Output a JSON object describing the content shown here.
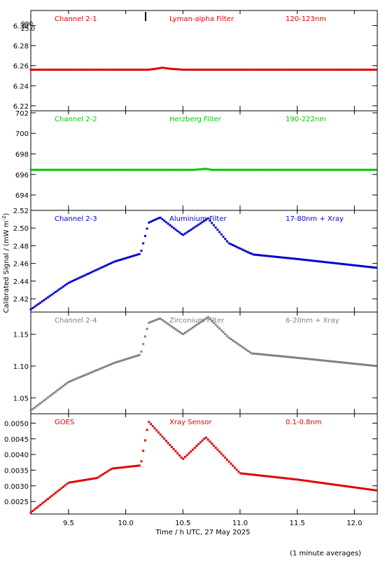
{
  "figure": {
    "ylabel": "Calibrated Signal / (mW m",
    "ylabel_sup": "-2",
    "ylabel_close": ")",
    "xlabel": "Time / h UTC, 27 May 2025",
    "footnote": "(1 minute averages)",
    "stray_text_1": "990",
    "stray_text_2": "25.0"
  },
  "chart_data": [
    {
      "type": "scatter",
      "channel": "Channel 2-1",
      "filter": "Lyman-alpha Filter",
      "band": "120-123nm",
      "color": "#e00000",
      "xlim": [
        9.17,
        12.2
      ],
      "ylim": [
        6.215,
        6.315
      ],
      "yticks": [
        6.22,
        6.24,
        6.26,
        6.28,
        6.3
      ],
      "ytick_labels": [
        "6.22",
        "6.24",
        "6.26",
        "6.28",
        "6.30"
      ],
      "series": [
        {
          "x": [
            9.17,
            10.2,
            10.27,
            10.32,
            10.38,
            10.5,
            12.2
          ],
          "y": [
            6.256,
            6.256,
            6.257,
            6.258,
            6.257,
            6.256,
            6.256
          ]
        }
      ]
    },
    {
      "type": "scatter",
      "channel": "Channel 2-2",
      "filter": "Herzberg Filter",
      "band": "190-222nm",
      "color": "#00c800",
      "xlim": [
        9.17,
        12.2
      ],
      "ylim": [
        692.5,
        702.2
      ],
      "yticks": [
        694,
        696,
        698,
        700,
        702
      ],
      "ytick_labels": [
        "694",
        "696",
        "698",
        "700",
        "702"
      ],
      "series": [
        {
          "x": [
            9.17,
            10.6,
            10.7,
            10.75,
            12.2
          ],
          "y": [
            696.45,
            696.45,
            696.55,
            696.45,
            696.45
          ]
        }
      ]
    },
    {
      "type": "scatter",
      "channel": "Channel 2-3",
      "filter": "Aluminium Filter",
      "band": "17-80nm + Xray",
      "color": "#0000d0",
      "xlim": [
        9.17,
        12.2
      ],
      "ylim": [
        2.405,
        2.52
      ],
      "yticks": [
        2.42,
        2.44,
        2.46,
        2.48,
        2.5,
        2.52
      ],
      "ytick_labels": [
        "2.42",
        "2.44",
        "2.46",
        "2.48",
        "2.50",
        "2.52"
      ],
      "series": [
        {
          "x": [
            9.17,
            9.5,
            9.9,
            10.13,
            10.2,
            10.3,
            10.5,
            10.72,
            10.9,
            11.08,
            11.12,
            11.5,
            12.2
          ],
          "y": [
            2.408,
            2.438,
            2.462,
            2.471,
            2.506,
            2.512,
            2.492,
            2.511,
            2.483,
            2.472,
            2.47,
            2.465,
            2.455
          ]
        }
      ]
    },
    {
      "type": "scatter",
      "channel": "Channel 2-4",
      "filter": "Zirconium Filter",
      "band": "6-20nm + Xray",
      "color": "#808080",
      "xlim": [
        9.17,
        12.2
      ],
      "ylim": [
        1.025,
        1.185
      ],
      "yticks": [
        1.05,
        1.1,
        1.15
      ],
      "ytick_labels": [
        "1.05",
        "1.10",
        "1.15"
      ],
      "series": [
        {
          "x": [
            9.17,
            9.5,
            9.9,
            10.13,
            10.2,
            10.3,
            10.5,
            10.72,
            10.9,
            11.1,
            11.5,
            12.2
          ],
          "y": [
            1.03,
            1.075,
            1.105,
            1.118,
            1.168,
            1.175,
            1.15,
            1.177,
            1.145,
            1.12,
            1.113,
            1.1
          ]
        }
      ]
    },
    {
      "type": "scatter",
      "channel": "GOES",
      "filter": "Xray Sensor",
      "band": "0.1-0.8nm",
      "color": "#e00000",
      "xlim": [
        9.17,
        12.2
      ],
      "ylim": [
        0.0021,
        0.0053
      ],
      "yticks": [
        0.0025,
        0.003,
        0.0035,
        0.004,
        0.0045,
        0.005
      ],
      "ytick_labels": [
        "0.0025",
        "0.0030",
        "0.0035",
        "0.0040",
        "0.0045",
        "0.0050"
      ],
      "series": [
        {
          "x": [
            9.17,
            9.5,
            9.75,
            9.88,
            10.13,
            10.2,
            10.5,
            10.7,
            11.0,
            11.5,
            12.2
          ],
          "y": [
            0.00215,
            0.0031,
            0.00325,
            0.00355,
            0.00365,
            0.00505,
            0.00385,
            0.00455,
            0.0034,
            0.0032,
            0.00285
          ]
        }
      ]
    }
  ],
  "x_axis": {
    "ticks": [
      9.5,
      10.0,
      10.5,
      11.0,
      11.5,
      12.0
    ],
    "tick_labels": [
      "9.5",
      "10.0",
      "10.5",
      "11.0",
      "11.5",
      "12.0"
    ]
  }
}
